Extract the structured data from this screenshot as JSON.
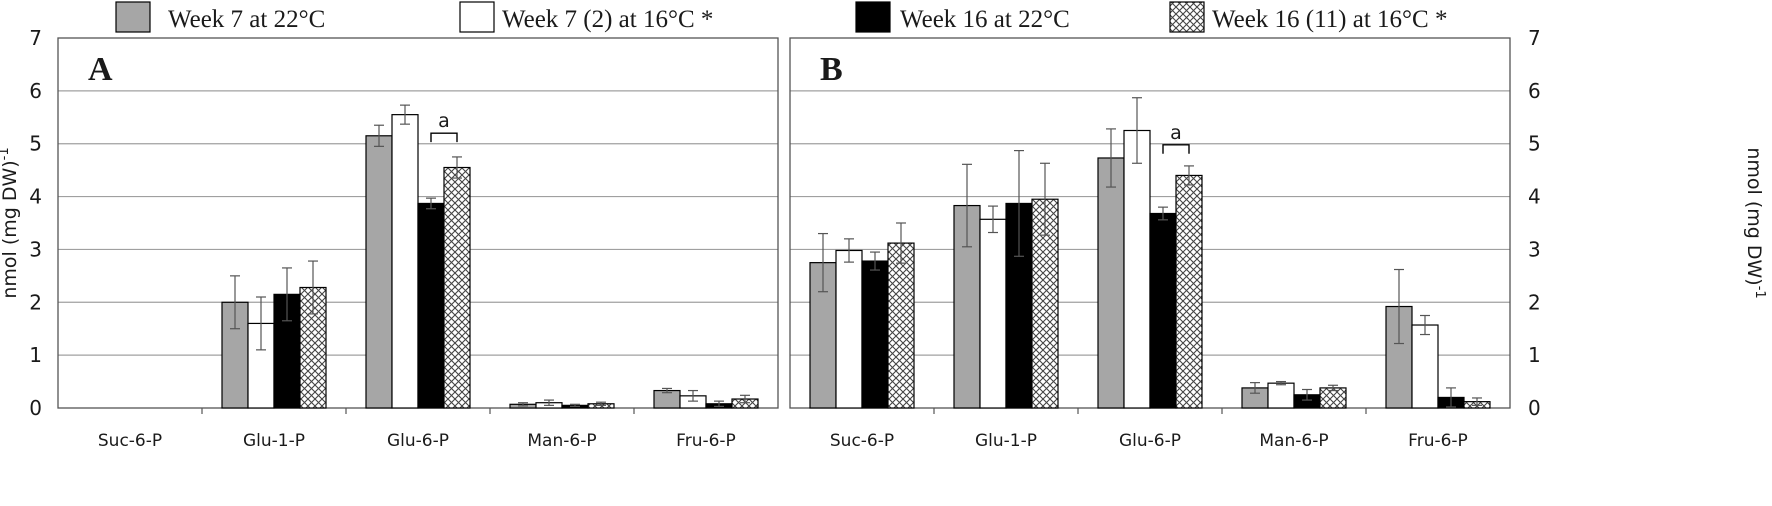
{
  "legend": [
    {
      "key": "w7_22",
      "label": "Week 7 at 22°C",
      "fill": "#a6a6a6"
    },
    {
      "key": "w7_16",
      "label": "Week 7 (2) at 16°C *",
      "fill": "#ffffff"
    },
    {
      "key": "w16_22",
      "label": "Week 16 at 22°C",
      "fill": "#000000"
    },
    {
      "key": "w16_16",
      "label": "Week 16 (11) at 16°C *",
      "fill": "hatch"
    }
  ],
  "colors": {
    "grey": "#a6a6a6",
    "white": "#ffffff",
    "black": "#000000",
    "gridline": "#a0a0a0",
    "frame": "#555555"
  },
  "chart_data": [
    {
      "panel": "A",
      "type": "bar",
      "categories": [
        "Suc-6-P",
        "Glu-1-P",
        "Glu-6-P",
        "Man-6-P",
        "Fru-6-P"
      ],
      "ylabel": "nmol (mg DW)-1",
      "ylim": [
        0,
        7
      ],
      "yticks": [
        "0",
        "1",
        "2",
        "3",
        "4",
        "5",
        "6",
        "7"
      ],
      "grid": true,
      "annotation": {
        "text": "a",
        "category": "Glu-6-P",
        "series_from": 2,
        "series_to": 3,
        "value": 5.2
      },
      "series": [
        {
          "name": "Week 7 at 22°C",
          "values": [
            null,
            2.0,
            5.15,
            0.07,
            0.33
          ],
          "errors": [
            null,
            0.5,
            0.2,
            0.03,
            0.04
          ]
        },
        {
          "name": "Week 7 (2) at 16°C *",
          "values": [
            null,
            1.6,
            5.55,
            0.1,
            0.23
          ],
          "errors": [
            null,
            0.5,
            0.18,
            0.05,
            0.1
          ]
        },
        {
          "name": "Week 16 at 22°C",
          "values": [
            null,
            2.15,
            3.87,
            0.05,
            0.08
          ],
          "errors": [
            null,
            0.5,
            0.1,
            0.02,
            0.05
          ]
        },
        {
          "name": "Week 16 (11) at 16°C *",
          "values": [
            null,
            2.28,
            4.55,
            0.08,
            0.17
          ],
          "errors": [
            null,
            0.5,
            0.2,
            0.03,
            0.07
          ]
        }
      ]
    },
    {
      "panel": "B",
      "type": "bar",
      "categories": [
        "Suc-6-P",
        "Glu-1-P",
        "Glu-6-P",
        "Man-6-P",
        "Fru-6-P"
      ],
      "ylabel": "nmol (mg DW)-1",
      "ylim": [
        0,
        7
      ],
      "yticks": [
        "0",
        "1",
        "2",
        "3",
        "4",
        "5",
        "6",
        "7"
      ],
      "grid": true,
      "annotation": {
        "text": "a",
        "category": "Glu-6-P",
        "series_from": 2,
        "series_to": 3,
        "value": 4.98
      },
      "series": [
        {
          "name": "Week 7 at 22°C",
          "values": [
            2.75,
            3.83,
            4.73,
            0.38,
            1.92
          ],
          "errors": [
            0.55,
            0.78,
            0.55,
            0.1,
            0.7
          ]
        },
        {
          "name": "Week 7 (2) at 16°C *",
          "values": [
            2.98,
            3.57,
            5.25,
            0.47,
            1.57
          ],
          "errors": [
            0.22,
            0.25,
            0.62,
            0.03,
            0.18
          ]
        },
        {
          "name": "Week 16 at 22°C",
          "values": [
            2.78,
            3.87,
            3.68,
            0.25,
            0.2
          ],
          "errors": [
            0.17,
            1.0,
            0.12,
            0.1,
            0.18
          ]
        },
        {
          "name": "Week 16 (11) at 16°C *",
          "values": [
            3.12,
            3.95,
            4.4,
            0.38,
            0.12
          ],
          "errors": [
            0.38,
            0.68,
            0.18,
            0.05,
            0.07
          ]
        }
      ]
    }
  ]
}
